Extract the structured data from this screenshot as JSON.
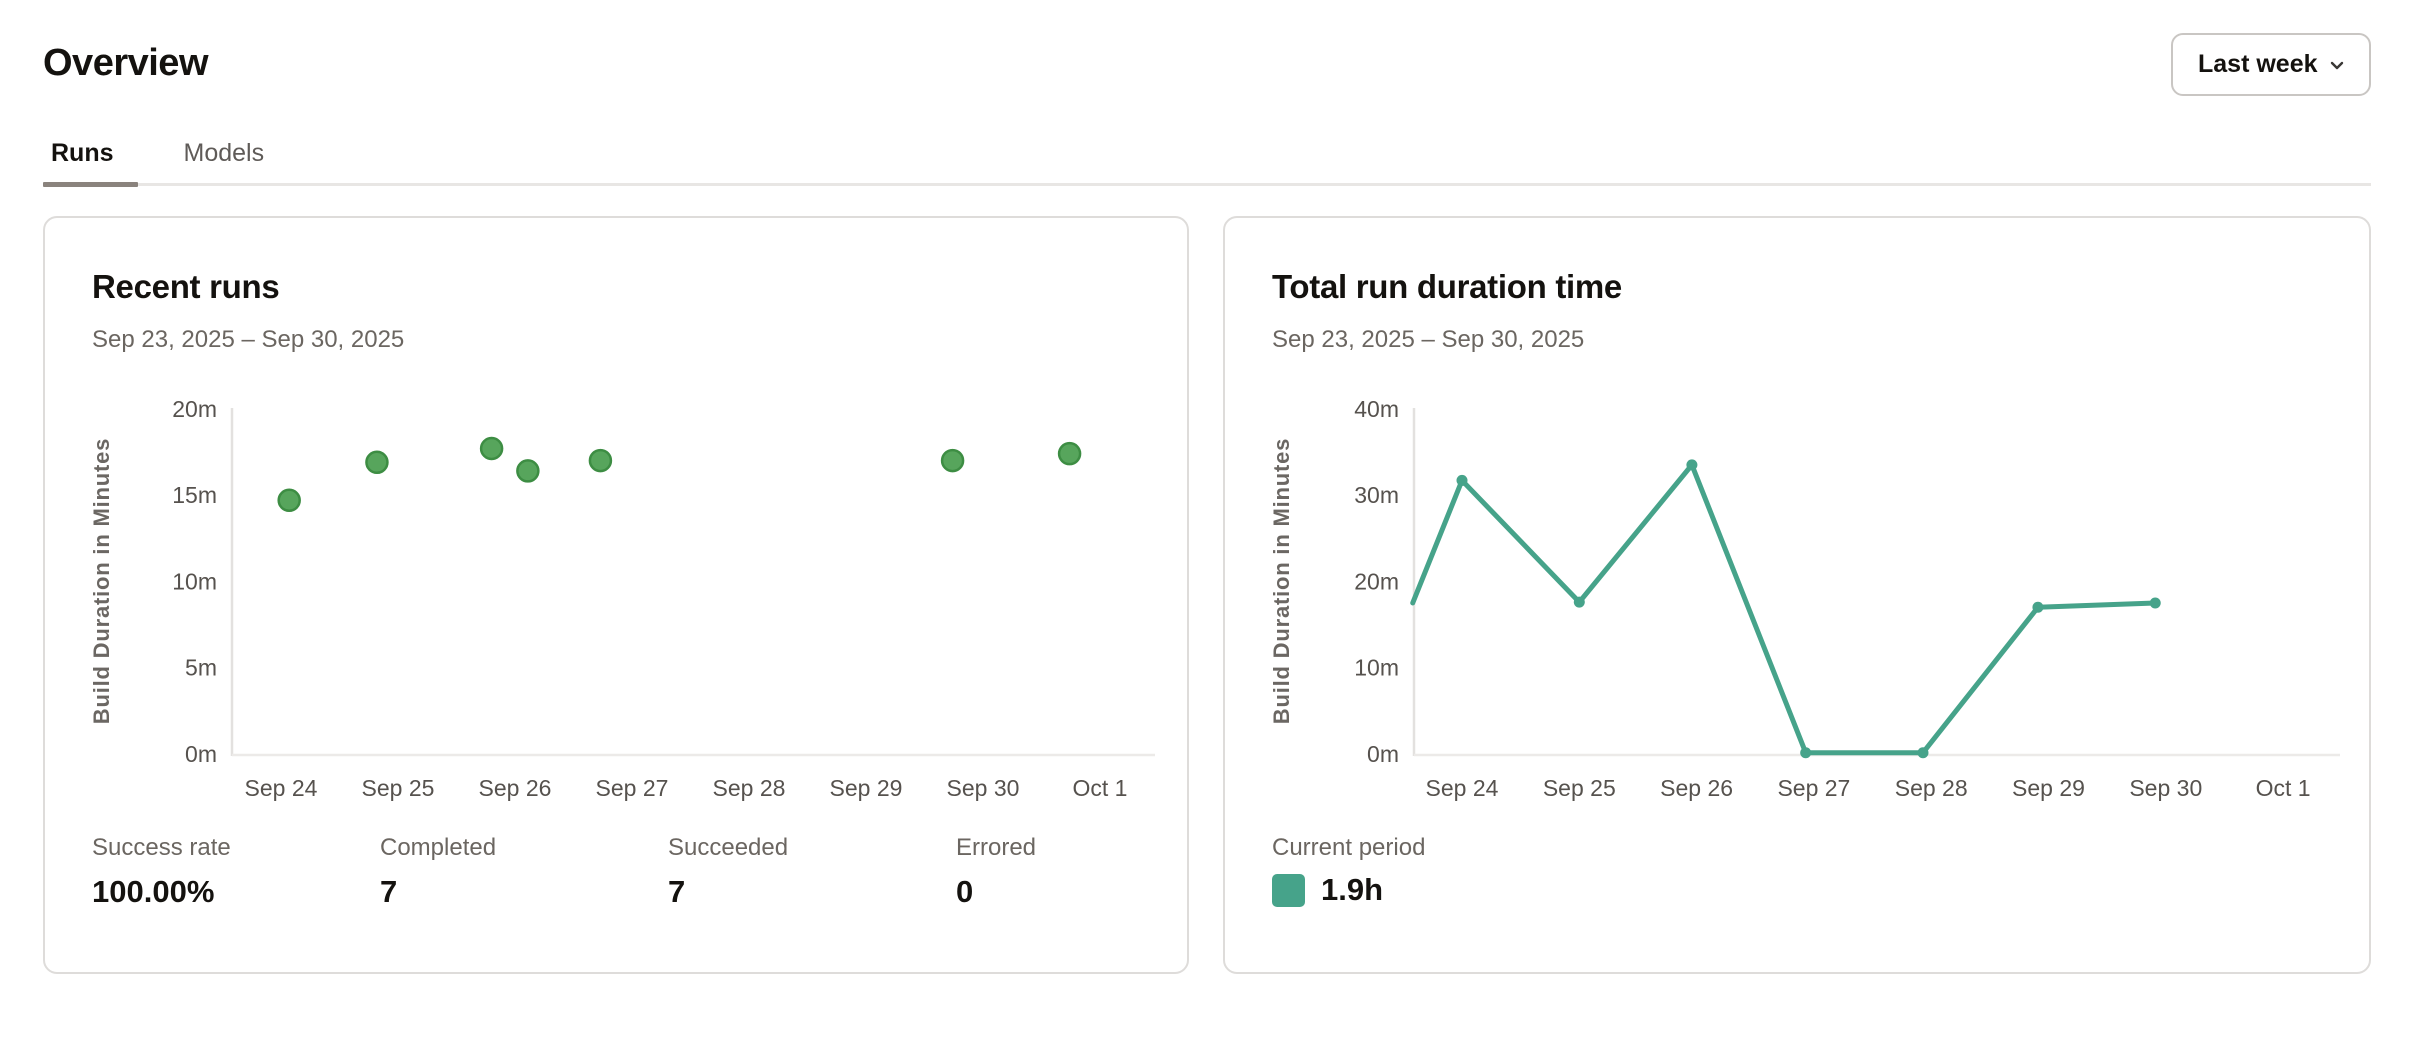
{
  "page": {
    "title": "Overview"
  },
  "period_selector": {
    "label": "Last week"
  },
  "tabs": [
    {
      "label": "Runs",
      "active": true
    },
    {
      "label": "Models",
      "active": false
    }
  ],
  "cards": [
    {
      "title": "Recent runs",
      "date_range": "Sep 23, 2025 – Sep 30, 2025",
      "stats": [
        {
          "label": "Success rate",
          "value": "100.00%"
        },
        {
          "label": "Completed",
          "value": "7"
        },
        {
          "label": "Succeeded",
          "value": "7"
        },
        {
          "label": "Errored",
          "value": "0"
        }
      ]
    },
    {
      "title": "Total run duration time",
      "date_range": "Sep 23, 2025 – Sep 30, 2025",
      "legend_label": "Current period",
      "legend_value": "1.9h",
      "legend_color": "#46a38a"
    }
  ],
  "chart_data": [
    {
      "type": "scatter",
      "title": "Recent runs",
      "ylabel": "Build Duration in Minutes",
      "ylim": [
        0,
        20
      ],
      "xlim_days": [
        23.58,
        31.47
      ],
      "grid": false,
      "y_ticks": [
        {
          "v": 0,
          "label": "0m"
        },
        {
          "v": 5,
          "label": "5m"
        },
        {
          "v": 10,
          "label": "10m"
        },
        {
          "v": 15,
          "label": "15m"
        },
        {
          "v": 20,
          "label": "20m"
        }
      ],
      "x_tick_days": [
        24,
        25,
        26,
        27,
        28,
        29,
        30,
        31
      ],
      "x_tick_labels": [
        "Sep 24",
        "Sep 25",
        "Sep 26",
        "Sep 27",
        "Sep 28",
        "Sep 29",
        "Sep 30",
        "Oct 1"
      ],
      "point_color": "#57a55c",
      "point_stroke": "#3d8d43",
      "points": [
        {
          "day": 24.07,
          "minutes": 14.7
        },
        {
          "day": 24.82,
          "minutes": 16.9
        },
        {
          "day": 25.8,
          "minutes": 17.7
        },
        {
          "day": 26.11,
          "minutes": 16.4
        },
        {
          "day": 26.73,
          "minutes": 17.0
        },
        {
          "day": 29.74,
          "minutes": 17.0
        },
        {
          "day": 30.74,
          "minutes": 17.4
        }
      ]
    },
    {
      "type": "line",
      "title": "Total run duration time",
      "ylabel": "Build Duration in Minutes",
      "ylim": [
        0,
        40
      ],
      "xlim_days": [
        23.58,
        31.47
      ],
      "grid": false,
      "y_ticks": [
        {
          "v": 0,
          "label": "0m"
        },
        {
          "v": 10,
          "label": "10m"
        },
        {
          "v": 20,
          "label": "20m"
        },
        {
          "v": 30,
          "label": "30m"
        },
        {
          "v": 40,
          "label": "40m"
        }
      ],
      "x_tick_days": [
        24,
        25,
        26,
        27,
        28,
        29,
        30,
        31
      ],
      "x_tick_labels": [
        "Sep 24",
        "Sep 25",
        "Sep 26",
        "Sep 27",
        "Sep 28",
        "Sep 29",
        "Sep 30",
        "Oct 1"
      ],
      "line_color": "#46a38a",
      "points": [
        {
          "day": 23.58,
          "minutes": 17.5,
          "marker": false
        },
        {
          "day": 24.0,
          "minutes": 31.7,
          "marker": true
        },
        {
          "day": 25.0,
          "minutes": 17.6,
          "marker": true
        },
        {
          "day": 25.96,
          "minutes": 33.5,
          "marker": true
        },
        {
          "day": 26.93,
          "minutes": 0.15,
          "marker": true
        },
        {
          "day": 27.93,
          "minutes": 0.15,
          "marker": true
        },
        {
          "day": 28.91,
          "minutes": 17.0,
          "marker": true
        },
        {
          "day": 29.91,
          "minutes": 17.5,
          "marker": true
        }
      ]
    }
  ]
}
